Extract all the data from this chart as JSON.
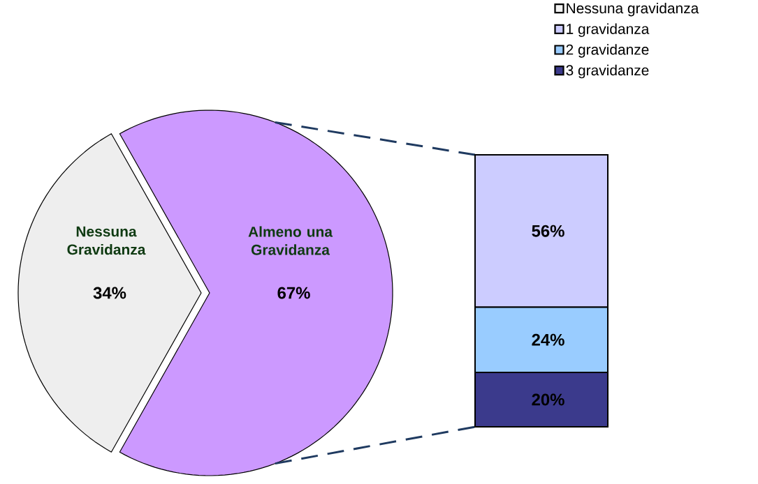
{
  "chart_data": [
    {
      "type": "pie",
      "categories": [
        "Nessuna Gravidanza",
        "Almeno una Gravidanza"
      ],
      "values": [
        34,
        67
      ],
      "colors": [
        "#eeeeee",
        "#cc99ff"
      ],
      "value_labels": [
        "34%",
        "67%"
      ]
    },
    {
      "type": "bar",
      "stacked": true,
      "categories": [
        null
      ],
      "legend": "top right",
      "series": [
        {
          "name": "3 gravidanze",
          "color": "#3b3a8c",
          "values": [
            20
          ],
          "value_labels": [
            "20%"
          ]
        },
        {
          "name": "2 gravidanze",
          "color": "#99ccff",
          "values": [
            24
          ],
          "value_labels": [
            "24%"
          ]
        },
        {
          "name": "1 gravidanza",
          "color": "#ccccff",
          "values": [
            56
          ],
          "value_labels": [
            "56%"
          ]
        },
        {
          "name": "Nessuna gravidanza",
          "color": "#f2f2f2",
          "values": [
            null
          ]
        }
      ]
    }
  ]
}
